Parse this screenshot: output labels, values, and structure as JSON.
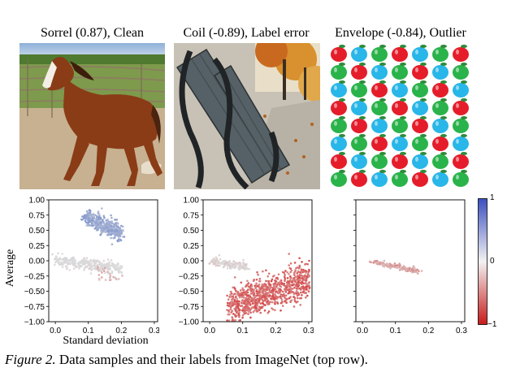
{
  "panels": [
    {
      "title": "Sorrel (0.87), Clean",
      "image": "horse-photo",
      "chart_data": {
        "type": "scatter",
        "xlim": [
          -0.02,
          0.31
        ],
        "ylim": [
          -1.0,
          1.0
        ],
        "xticks": [
          "0.0",
          "0.1",
          "0.2",
          "0.3"
        ],
        "yticks": [
          "1.00",
          "0.75",
          "0.50",
          "0.25",
          "0.00",
          "−0.25",
          "−0.50",
          "−0.75",
          "−1.00"
        ],
        "show_yticks": true,
        "clusters": [
          {
            "x0": 0.09,
            "x1": 0.2,
            "y0": 0.72,
            "y1": 0.45,
            "spread": 0.07,
            "n": 420,
            "color": [
              0.25,
              0.55
            ]
          },
          {
            "x0": 0.0,
            "x1": 0.2,
            "y0": 0.0,
            "y1": -0.12,
            "spread": 0.05,
            "n": 300,
            "color": [
              -0.05,
              0.05
            ]
          },
          {
            "x0": 0.12,
            "x1": 0.2,
            "y0": -0.18,
            "y1": -0.32,
            "spread": 0.06,
            "n": 25,
            "color": [
              -0.35,
              -0.1
            ]
          }
        ]
      }
    },
    {
      "title": "Coil (-0.89), Label error",
      "image": "bench-photo",
      "chart_data": {
        "type": "scatter",
        "xlim": [
          -0.02,
          0.31
        ],
        "ylim": [
          -1.0,
          1.0
        ],
        "xticks": [
          "0.0",
          "0.1",
          "0.2",
          "0.3"
        ],
        "yticks": [
          "1.00",
          "0.75",
          "0.50",
          "0.25",
          "0.00",
          "−0.25",
          "−0.50",
          "−0.75",
          "−1.00"
        ],
        "show_yticks": true,
        "clusters": [
          {
            "x0": 0.01,
            "x1": 0.11,
            "y0": 0.0,
            "y1": -0.1,
            "spread": 0.03,
            "n": 160,
            "color": [
              -0.15,
              0.02
            ]
          },
          {
            "x0": 0.06,
            "x1": 0.3,
            "y0": -0.75,
            "y1": -0.3,
            "spread": 0.14,
            "n": 900,
            "color": [
              -0.85,
              -0.45
            ]
          }
        ]
      }
    },
    {
      "title": "Envelope (-0.84), Outlier",
      "image": "apple-pattern",
      "chart_data": {
        "type": "scatter",
        "xlim": [
          -0.02,
          0.31
        ],
        "ylim": [
          -1.0,
          1.0
        ],
        "xticks": [
          "0.0",
          "0.1",
          "0.2",
          "0.3"
        ],
        "yticks": [
          "1.00",
          "0.75",
          "0.50",
          "0.25",
          "0.00",
          "−0.25",
          "−0.50",
          "−0.75",
          "−1.00"
        ],
        "show_yticks": false,
        "clusters": [
          {
            "x0": 0.03,
            "x1": 0.17,
            "y0": -0.01,
            "y1": -0.17,
            "spread": 0.02,
            "n": 160,
            "color": [
              -0.45,
              -0.15
            ]
          }
        ]
      }
    }
  ],
  "axis": {
    "ylabel": "Average",
    "xlabel": "Standard deviation"
  },
  "colorbar": {
    "ticks": [
      "1",
      "0",
      "−1"
    ],
    "range": [
      -1,
      1
    ]
  },
  "caption": {
    "figure": "Figure 2.",
    "text": " Data samples and their labels from ImageNet (top row)."
  },
  "colors": {
    "positive": "#3b5fc0",
    "neutral": "#dddddd",
    "negative": "#d42a2a"
  }
}
